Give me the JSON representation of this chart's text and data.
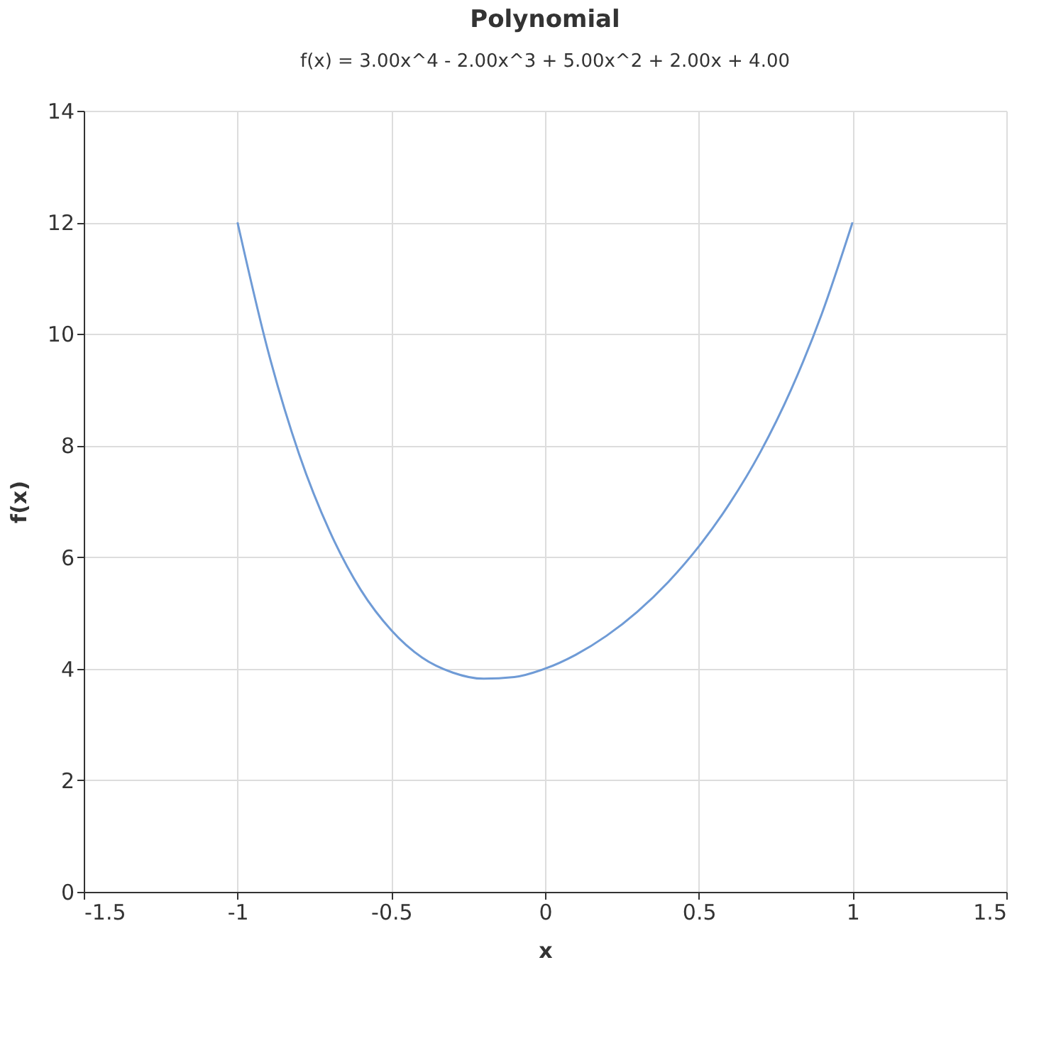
{
  "chart_data": {
    "type": "line",
    "title": "Polynomial",
    "subtitle": "f(x) = 3.00x^4 - 2.00x^3 + 5.00x^2 + 2.00x + 4.00",
    "xlabel": "x",
    "ylabel": "f(x)",
    "x": [
      -1,
      -0.9,
      -0.8,
      -0.7,
      -0.6,
      -0.5,
      -0.4,
      -0.3,
      -0.2,
      -0.1,
      0,
      0.1,
      0.2,
      0.3,
      0.4,
      0.5,
      0.6,
      0.7,
      0.8,
      0.9,
      1
    ],
    "series": [
      {
        "color": "#6f9bd6",
        "values": [
          12,
          9.68,
          7.85,
          6.46,
          5.42,
          4.69,
          4.2,
          3.93,
          3.82,
          3.85,
          4,
          4.25,
          4.59,
          5.02,
          5.55,
          6.19,
          6.96,
          7.88,
          9.0,
          10.36,
          12
        ]
      }
    ],
    "xlim": [
      -1.5,
      1.5
    ],
    "xticks": [
      -1.5,
      -1,
      -0.5,
      0,
      0.5,
      1,
      1.5
    ],
    "ylim": [
      0,
      14
    ],
    "yticks": [
      0,
      2,
      4,
      6,
      8,
      10,
      12,
      14
    ],
    "grid": true,
    "marker": "none",
    "line_style": "solid"
  }
}
